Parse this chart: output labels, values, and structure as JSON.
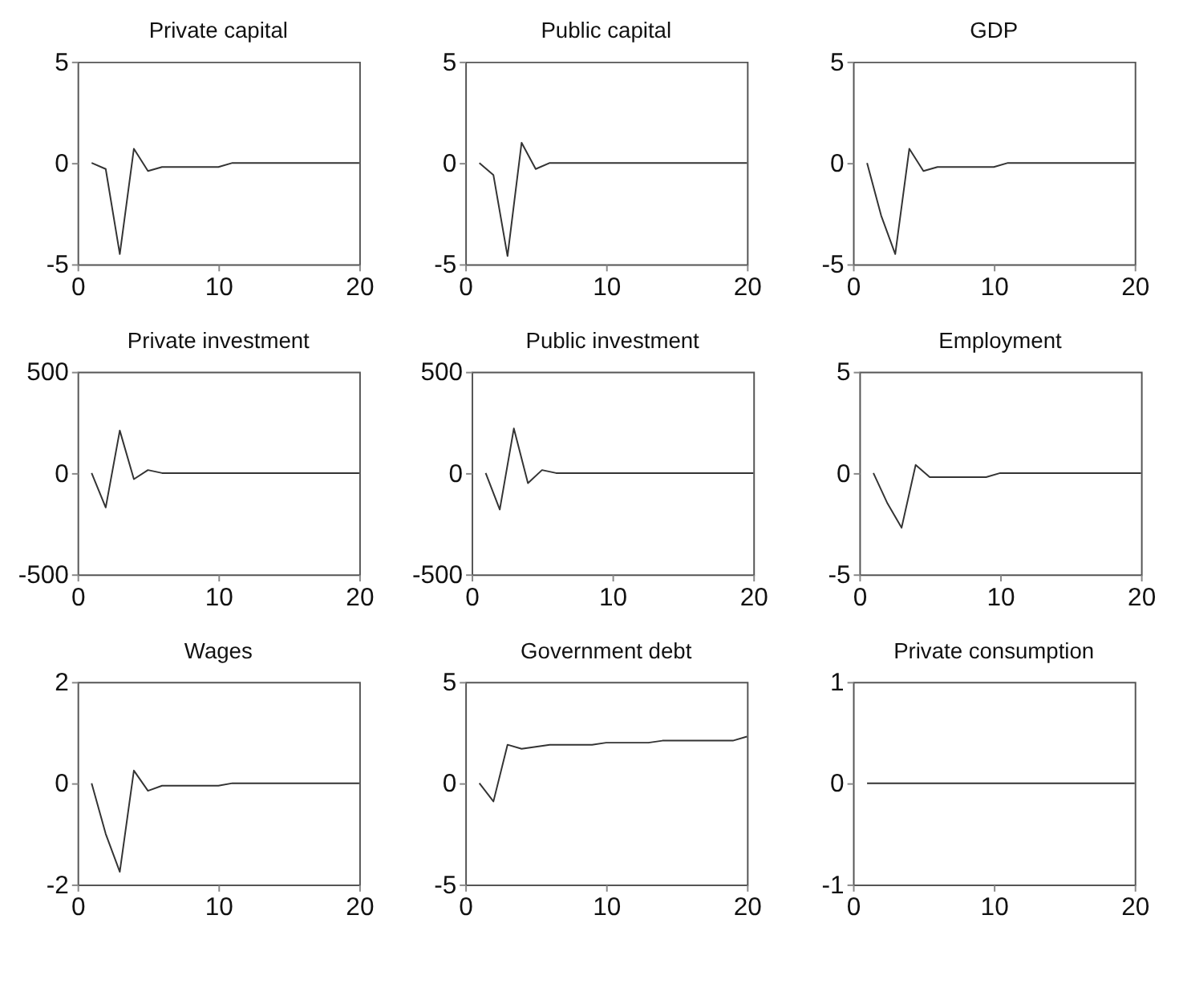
{
  "chart_data": [
    {
      "type": "line",
      "title": "Private capital",
      "x": [
        1,
        2,
        3,
        4,
        5,
        6,
        7,
        8,
        9,
        10,
        11,
        12,
        13,
        14,
        15,
        16,
        17,
        18,
        19,
        20
      ],
      "values": [
        0,
        -0.3,
        -4.5,
        0.7,
        -0.4,
        -0.2,
        -0.2,
        -0.2,
        -0.2,
        -0.2,
        0,
        0,
        0,
        0,
        0,
        0,
        0,
        0,
        0,
        0
      ],
      "color": "#333333",
      "xlim": [
        0,
        20
      ],
      "xticks": [
        0,
        10,
        20
      ],
      "ylim": [
        -5,
        5
      ],
      "yticks": [
        -5,
        0,
        5
      ]
    },
    {
      "type": "line",
      "title": "Public capital",
      "x": [
        1,
        2,
        3,
        4,
        5,
        6,
        7,
        8,
        9,
        10,
        11,
        12,
        13,
        14,
        15,
        16,
        17,
        18,
        19,
        20
      ],
      "values": [
        0,
        -0.6,
        -4.6,
        1.0,
        -0.3,
        0,
        0,
        0,
        0,
        0,
        0,
        0,
        0,
        0,
        0,
        0,
        0,
        0,
        0,
        0
      ],
      "color": "#333333",
      "xlim": [
        0,
        20
      ],
      "xticks": [
        0,
        10,
        20
      ],
      "ylim": [
        -5,
        5
      ],
      "yticks": [
        -5,
        0,
        5
      ]
    },
    {
      "type": "line",
      "title": "GDP",
      "x": [
        1,
        2,
        3,
        4,
        5,
        6,
        7,
        8,
        9,
        10,
        11,
        12,
        13,
        14,
        15,
        16,
        17,
        18,
        19,
        20
      ],
      "values": [
        0,
        -2.6,
        -4.5,
        0.7,
        -0.4,
        -0.2,
        -0.2,
        -0.2,
        -0.2,
        -0.2,
        0,
        0,
        0,
        0,
        0,
        0,
        0,
        0,
        0,
        0
      ],
      "color": "#333333",
      "xlim": [
        0,
        20
      ],
      "xticks": [
        0,
        10,
        20
      ],
      "ylim": [
        -5,
        5
      ],
      "yticks": [
        -5,
        0,
        5
      ]
    },
    {
      "type": "line",
      "title": "Private investment",
      "x": [
        1,
        2,
        3,
        4,
        5,
        6,
        7,
        8,
        9,
        10,
        11,
        12,
        13,
        14,
        15,
        16,
        17,
        18,
        19,
        20
      ],
      "values": [
        0,
        -170,
        210,
        -30,
        15,
        0,
        0,
        0,
        0,
        0,
        0,
        0,
        0,
        0,
        0,
        0,
        0,
        0,
        0,
        0
      ],
      "color": "#333333",
      "xlim": [
        0,
        20
      ],
      "xticks": [
        0,
        10,
        20
      ],
      "ylim": [
        -500,
        500
      ],
      "yticks": [
        -500,
        0,
        500
      ]
    },
    {
      "type": "line",
      "title": "Public investment",
      "x": [
        1,
        2,
        3,
        4,
        5,
        6,
        7,
        8,
        9,
        10,
        11,
        12,
        13,
        14,
        15,
        16,
        17,
        18,
        19,
        20
      ],
      "values": [
        0,
        -180,
        220,
        -50,
        15,
        0,
        0,
        0,
        0,
        0,
        0,
        0,
        0,
        0,
        0,
        0,
        0,
        0,
        0,
        0
      ],
      "color": "#333333",
      "xlim": [
        0,
        20
      ],
      "xticks": [
        0,
        10,
        20
      ],
      "ylim": [
        -500,
        500
      ],
      "yticks": [
        -500,
        0,
        500
      ]
    },
    {
      "type": "line",
      "title": "Employment",
      "x": [
        1,
        2,
        3,
        4,
        5,
        6,
        7,
        8,
        9,
        10,
        11,
        12,
        13,
        14,
        15,
        16,
        17,
        18,
        19,
        20
      ],
      "values": [
        0,
        -1.5,
        -2.7,
        0.4,
        -0.2,
        -0.2,
        -0.2,
        -0.2,
        -0.2,
        0,
        0,
        0,
        0,
        0,
        0,
        0,
        0,
        0,
        0,
        0
      ],
      "color": "#333333",
      "xlim": [
        0,
        20
      ],
      "xticks": [
        0,
        10,
        20
      ],
      "ylim": [
        -5,
        5
      ],
      "yticks": [
        -5,
        0,
        5
      ]
    },
    {
      "type": "line",
      "title": "Wages",
      "x": [
        1,
        2,
        3,
        4,
        5,
        6,
        7,
        8,
        9,
        10,
        11,
        12,
        13,
        14,
        15,
        16,
        17,
        18,
        19,
        20
      ],
      "values": [
        0,
        -1.0,
        -1.75,
        0.25,
        -0.15,
        -0.05,
        -0.05,
        -0.05,
        -0.05,
        -0.05,
        0,
        0,
        0,
        0,
        0,
        0,
        0,
        0,
        0,
        0
      ],
      "color": "#333333",
      "xlim": [
        0,
        20
      ],
      "xticks": [
        0,
        10,
        20
      ],
      "ylim": [
        -2,
        2
      ],
      "yticks": [
        -2,
        0,
        2
      ]
    },
    {
      "type": "line",
      "title": "Government debt",
      "x": [
        1,
        2,
        3,
        4,
        5,
        6,
        7,
        8,
        9,
        10,
        11,
        12,
        13,
        14,
        15,
        16,
        17,
        18,
        19,
        20
      ],
      "values": [
        0,
        -0.9,
        1.9,
        1.7,
        1.8,
        1.9,
        1.9,
        1.9,
        1.9,
        2.0,
        2.0,
        2.0,
        2.0,
        2.1,
        2.1,
        2.1,
        2.1,
        2.1,
        2.1,
        2.3
      ],
      "color": "#333333",
      "xlim": [
        0,
        20
      ],
      "xticks": [
        0,
        10,
        20
      ],
      "ylim": [
        -5,
        5
      ],
      "yticks": [
        -5,
        0,
        5
      ]
    },
    {
      "type": "line",
      "title": "Private consumption",
      "x": [
        1,
        2,
        3,
        4,
        5,
        6,
        7,
        8,
        9,
        10,
        11,
        12,
        13,
        14,
        15,
        16,
        17,
        18,
        19,
        20
      ],
      "values": [
        0,
        0,
        0,
        0,
        0,
        0,
        0,
        0,
        0,
        0,
        0,
        0,
        0,
        0,
        0,
        0,
        0,
        0,
        0,
        0
      ],
      "color": "#333333",
      "xlim": [
        0,
        20
      ],
      "xticks": [
        0,
        10,
        20
      ],
      "ylim": [
        -1,
        1
      ],
      "yticks": [
        -1,
        0,
        1
      ]
    }
  ]
}
